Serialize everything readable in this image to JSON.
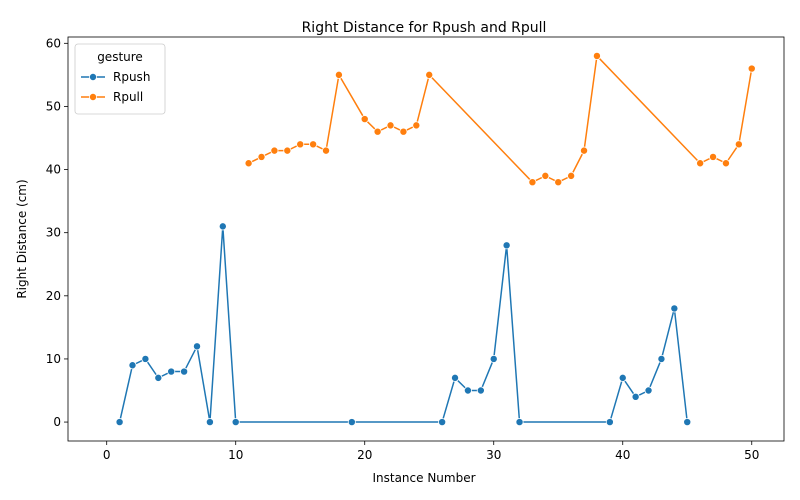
{
  "chart_data": {
    "type": "line",
    "title": "Right Distance for Rpush and Rpull",
    "xlabel": "Instance Number",
    "ylabel": "Right Distance (cm)",
    "xlim": [
      -3,
      52.5
    ],
    "ylim": [
      -3,
      61
    ],
    "xticks": [
      0,
      10,
      20,
      30,
      40,
      50
    ],
    "yticks": [
      0,
      10,
      20,
      30,
      40,
      50,
      60
    ],
    "grid": false,
    "legend": {
      "title": "gesture",
      "placement": "top-left"
    },
    "series": [
      {
        "name": "Rpush",
        "color": "#1f77b4",
        "marker": "circle",
        "points": [
          [
            1,
            0
          ],
          [
            2,
            9
          ],
          [
            3,
            10
          ],
          [
            4,
            7
          ],
          [
            5,
            8
          ],
          [
            6,
            8
          ],
          [
            7,
            12
          ],
          [
            8,
            0
          ],
          [
            9,
            31
          ],
          [
            10,
            0
          ],
          [
            19,
            0
          ],
          [
            26,
            0
          ],
          [
            27,
            7
          ],
          [
            28,
            5
          ],
          [
            29,
            5
          ],
          [
            30,
            10
          ],
          [
            31,
            28
          ],
          [
            32,
            0
          ],
          [
            39,
            0
          ],
          [
            40,
            7
          ],
          [
            41,
            4
          ],
          [
            42,
            5
          ],
          [
            43,
            10
          ],
          [
            44,
            18
          ],
          [
            45,
            0
          ]
        ]
      },
      {
        "name": "Rpull",
        "color": "#ff7f0e",
        "marker": "circle",
        "points": [
          [
            11,
            41
          ],
          [
            12,
            42
          ],
          [
            13,
            43
          ],
          [
            14,
            43
          ],
          [
            15,
            44
          ],
          [
            16,
            44
          ],
          [
            17,
            43
          ],
          [
            18,
            55
          ],
          [
            20,
            48
          ],
          [
            21,
            46
          ],
          [
            22,
            47
          ],
          [
            23,
            46
          ],
          [
            24,
            47
          ],
          [
            25,
            55
          ],
          [
            33,
            38
          ],
          [
            34,
            39
          ],
          [
            35,
            38
          ],
          [
            36,
            39
          ],
          [
            37,
            43
          ],
          [
            38,
            58
          ],
          [
            46,
            41
          ],
          [
            47,
            42
          ],
          [
            48,
            41
          ],
          [
            49,
            44
          ],
          [
            50,
            56
          ]
        ]
      }
    ]
  }
}
